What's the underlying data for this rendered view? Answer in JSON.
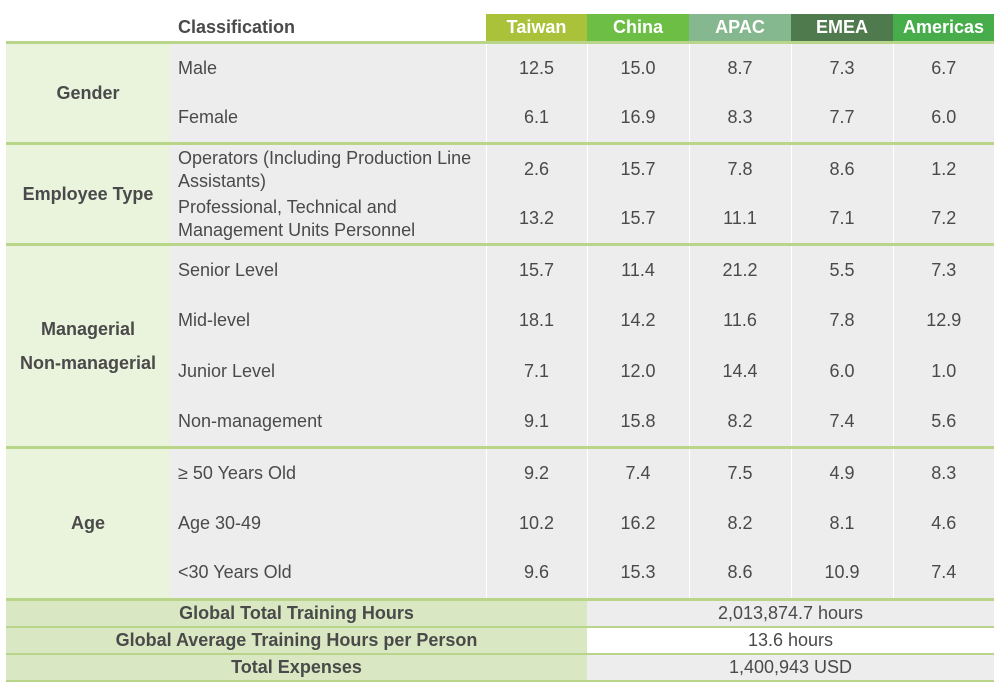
{
  "header": {
    "classification": "Classification",
    "regions": [
      "Taiwan",
      "China",
      "APAC",
      "EMEA",
      "Americas"
    ]
  },
  "groups": [
    {
      "category_lines": [
        "Gender"
      ],
      "rows": [
        {
          "label": "Male",
          "values": [
            "12.5",
            "15.0",
            "8.7",
            "7.3",
            "6.7"
          ]
        },
        {
          "label": "Female",
          "values": [
            "6.1",
            "16.9",
            "8.3",
            "7.7",
            "6.0"
          ]
        }
      ]
    },
    {
      "category_lines": [
        "Employee Type"
      ],
      "rows": [
        {
          "label": "Operators (Including Production Line Assistants)",
          "values": [
            "2.6",
            "15.7",
            "7.8",
            "8.6",
            "1.2"
          ]
        },
        {
          "label": "Professional, Technical and Management Units Personnel",
          "values": [
            "13.2",
            "15.7",
            "11.1",
            "7.1",
            "7.2"
          ]
        }
      ]
    },
    {
      "category_lines": [
        "Managerial",
        "Non-managerial"
      ],
      "rows": [
        {
          "label": "Senior Level",
          "values": [
            "15.7",
            "11.4",
            "21.2",
            "5.5",
            "7.3"
          ]
        },
        {
          "label": "Mid-level",
          "values": [
            "18.1",
            "14.2",
            "11.6",
            "7.8",
            "12.9"
          ]
        },
        {
          "label": "Junior Level",
          "values": [
            "7.1",
            "12.0",
            "14.4",
            "6.0",
            "1.0"
          ]
        },
        {
          "label": "Non-management",
          "values": [
            "9.1",
            "15.8",
            "8.2",
            "7.4",
            "5.6"
          ]
        }
      ]
    },
    {
      "category_lines": [
        "Age"
      ],
      "rows": [
        {
          "label": "≥ 50 Years Old",
          "values": [
            "9.2",
            "7.4",
            "7.5",
            "4.9",
            "8.3"
          ]
        },
        {
          "label": "Age 30-49",
          "values": [
            "10.2",
            "16.2",
            "8.2",
            "8.1",
            "4.6"
          ]
        },
        {
          "label": "<30 Years Old",
          "values": [
            "9.6",
            "15.3",
            "8.6",
            "10.9",
            "7.4"
          ]
        }
      ]
    }
  ],
  "footer": [
    {
      "label": "Global Total Training Hours",
      "value": "2,013,874.7 hours"
    },
    {
      "label": "Global Average Training Hours per Person",
      "value": "13.6 hours"
    },
    {
      "label": "Total Expenses",
      "value": "1,400,943 USD"
    }
  ]
}
